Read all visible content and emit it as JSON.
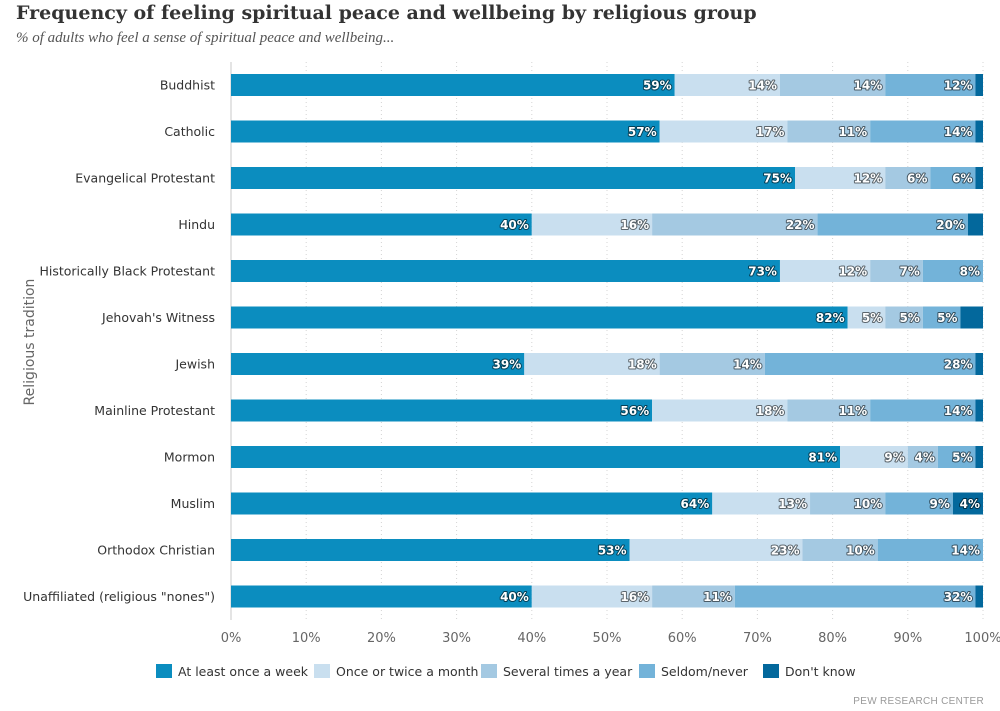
{
  "chart_data": {
    "type": "bar",
    "orientation": "horizontal",
    "stacked": true,
    "title": "Frequency of feeling spiritual peace and wellbeing by religious group",
    "subtitle": "% of adults who feel a sense of spiritual peace and wellbeing...",
    "ylabel": "Religious tradition",
    "xlim": [
      0,
      100
    ],
    "x_ticks": [
      "0%",
      "10%",
      "20%",
      "30%",
      "40%",
      "50%",
      "60%",
      "70%",
      "80%",
      "90%",
      "100%"
    ],
    "grid": true,
    "legend_position": "bottom",
    "categories": [
      "Buddhist",
      "Catholic",
      "Evangelical Protestant",
      "Hindu",
      "Historically Black Protestant",
      "Jehovah's Witness",
      "Jewish",
      "Mainline Protestant",
      "Mormon",
      "Muslim",
      "Orthodox Christian",
      "Unaffiliated (religious \"nones\")"
    ],
    "series": [
      {
        "name": "At least once a week",
        "color": "#0b8dbf",
        "values": [
          59,
          57,
          75,
          40,
          73,
          82,
          39,
          56,
          81,
          64,
          53,
          40
        ]
      },
      {
        "name": "Once or twice a month",
        "color": "#c9dfef",
        "values": [
          14,
          17,
          12,
          16,
          12,
          5,
          18,
          18,
          9,
          13,
          23,
          16
        ]
      },
      {
        "name": "Several times a year",
        "color": "#a4c9e2",
        "values": [
          14,
          11,
          6,
          22,
          7,
          5,
          14,
          11,
          4,
          10,
          10,
          11
        ]
      },
      {
        "name": "Seldom/never",
        "color": "#73b3d9",
        "values": [
          12,
          14,
          6,
          20,
          8,
          5,
          28,
          14,
          5,
          9,
          14,
          32
        ]
      },
      {
        "name": "Don't know",
        "color": "#03689c",
        "values": [
          1,
          1,
          1,
          2,
          1,
          3,
          1,
          1,
          1,
          4,
          0,
          2
        ]
      }
    ],
    "data_labels": [
      [
        "59%",
        "14%",
        "14%",
        "12%",
        ""
      ],
      [
        "57%",
        "17%",
        "11%",
        "14%",
        ""
      ],
      [
        "75%",
        "12%",
        "6%",
        "6%",
        ""
      ],
      [
        "40%",
        "16%",
        "22%",
        "20%",
        ""
      ],
      [
        "73%",
        "12%",
        "7%",
        "8%",
        ""
      ],
      [
        "82%",
        "5%",
        "5%",
        "5%",
        ""
      ],
      [
        "39%",
        "18%",
        "14%",
        "28%",
        ""
      ],
      [
        "56%",
        "18%",
        "11%",
        "14%",
        ""
      ],
      [
        "81%",
        "9%",
        "4%",
        "5%",
        ""
      ],
      [
        "64%",
        "13%",
        "10%",
        "9%",
        "4%"
      ],
      [
        "53%",
        "23%",
        "10%",
        "14%",
        ""
      ],
      [
        "40%",
        "16%",
        "11%",
        "32%",
        ""
      ]
    ],
    "source": "PEW RESEARCH CENTER"
  }
}
